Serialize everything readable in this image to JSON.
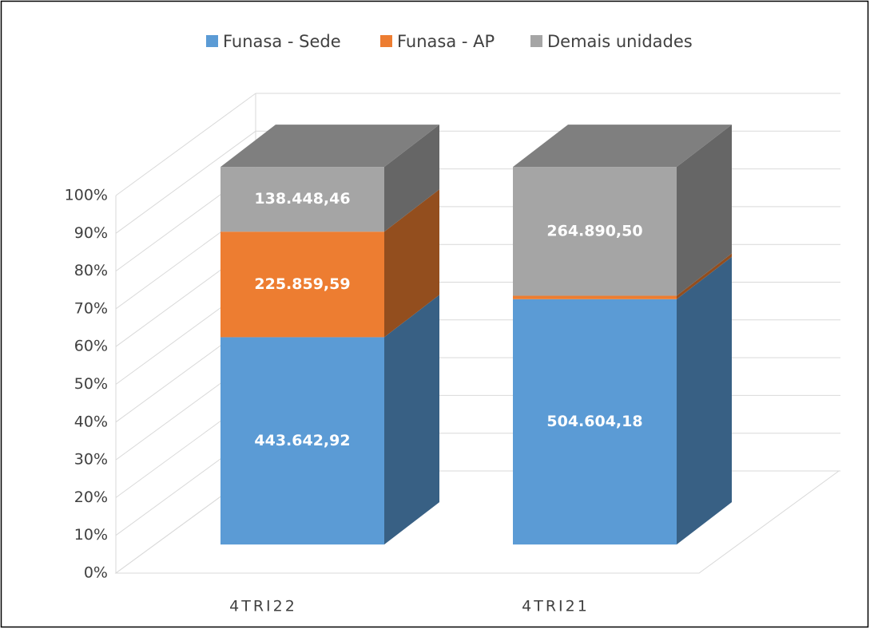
{
  "chart_data": {
    "type": "bar",
    "stack": "percent",
    "categories": [
      "4TRI22",
      "4TRI21"
    ],
    "series": [
      {
        "name": "Funasa - Sede",
        "color": "#5b9bd5",
        "values": [
          443642.92,
          504604.18
        ],
        "value_labels": [
          "443.642,92",
          "504.604,18"
        ]
      },
      {
        "name": "Funasa - AP",
        "color": "#ed7d31",
        "values": [
          225859.59,
          7000
        ],
        "value_labels": [
          "225.859,59",
          null
        ]
      },
      {
        "name": "Demais unidades",
        "color": "#a5a5a5",
        "values": [
          138448.46,
          264890.5
        ],
        "value_labels": [
          "138.448,46",
          "264.890,50"
        ]
      }
    ],
    "ylim": [
      0,
      100
    ],
    "yticks": [
      {
        "value": 0,
        "label": "0%"
      },
      {
        "value": 10,
        "label": "10%"
      },
      {
        "value": 20,
        "label": "20%"
      },
      {
        "value": 30,
        "label": "30%"
      },
      {
        "value": 40,
        "label": "40%"
      },
      {
        "value": 50,
        "label": "50%"
      },
      {
        "value": 60,
        "label": "60%"
      },
      {
        "value": 70,
        "label": "70%"
      },
      {
        "value": 80,
        "label": "80%"
      },
      {
        "value": 90,
        "label": "90%"
      },
      {
        "value": 100,
        "label": "100%"
      }
    ],
    "grid": true,
    "legend": "top"
  }
}
